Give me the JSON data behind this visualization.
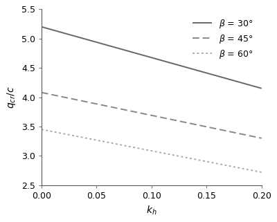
{
  "lines": [
    {
      "label": "$\\beta$ = 30°",
      "style": "solid",
      "color": "#666666",
      "x": [
        0.0,
        0.2
      ],
      "y": [
        5.2,
        4.15
      ]
    },
    {
      "label": "$\\beta$ = 45°",
      "style": "dashed",
      "color": "#888888",
      "x": [
        0.0,
        0.2
      ],
      "y": [
        4.08,
        3.3
      ]
    },
    {
      "label": "$\\beta$ = 60°",
      "style": "dotted",
      "color": "#aaaaaa",
      "x": [
        0.0,
        0.2
      ],
      "y": [
        3.45,
        2.72
      ]
    }
  ],
  "xlabel": "$k_h$",
  "ylabel": "$q_{cr}/c$",
  "xlim": [
    0.0,
    0.2
  ],
  "ylim": [
    2.5,
    5.5
  ],
  "xticks": [
    0.0,
    0.05,
    0.1,
    0.15,
    0.2
  ],
  "yticks": [
    2.5,
    3.0,
    3.5,
    4.0,
    4.5,
    5.0,
    5.5
  ],
  "background_color": "#ffffff",
  "legend_loc": "upper right",
  "linewidth": 1.4,
  "figsize": [
    4.0,
    3.21
  ],
  "dpi": 100
}
